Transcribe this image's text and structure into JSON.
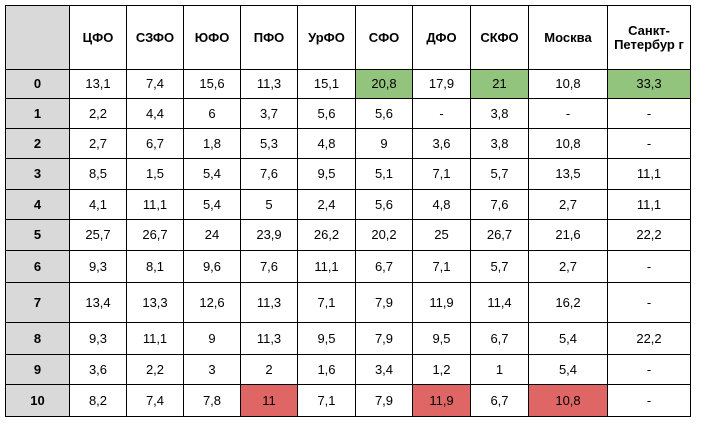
{
  "colors": {
    "header_bg": "#d9d9d9",
    "highlight_green": "#93c47d",
    "highlight_red": "#e06666"
  },
  "table": {
    "corner": "",
    "headers": [
      "ЦФО",
      "СЗФО",
      "ЮФО",
      "ПФО",
      "УрФО",
      "СФО",
      "ДФО",
      "СКФО",
      "Москва",
      "Санкт-Петербур г"
    ],
    "rows": [
      {
        "label": "0",
        "cells": [
          "13,1",
          "7,4",
          "15,6",
          "11,3",
          "15,1",
          "20,8",
          "17,9",
          "21",
          "10,8",
          "33,3"
        ],
        "green": [
          5,
          7,
          9
        ],
        "red": []
      },
      {
        "label": "1",
        "cells": [
          "2,2",
          "4,4",
          "6",
          "3,7",
          "5,6",
          "5,6",
          "-",
          "3,8",
          "-",
          "-"
        ],
        "green": [],
        "red": []
      },
      {
        "label": "2",
        "cells": [
          "2,7",
          "6,7",
          "1,8",
          "5,3",
          "4,8",
          "9",
          "3,6",
          "3,8",
          "10,8",
          "-"
        ],
        "green": [],
        "red": []
      },
      {
        "label": "3",
        "cells": [
          "8,5",
          "1,5",
          "5,4",
          "7,6",
          "9,5",
          "5,1",
          "7,1",
          "5,7",
          "13,5",
          "11,1"
        ],
        "green": [],
        "red": []
      },
      {
        "label": "4",
        "cells": [
          "4,1",
          "11,1",
          "5,4",
          "5",
          "2,4",
          "5,6",
          "4,8",
          "7,6",
          "2,7",
          "11,1"
        ],
        "green": [],
        "red": []
      },
      {
        "label": "5",
        "cells": [
          "25,7",
          "26,7",
          "24",
          "23,9",
          "26,2",
          "20,2",
          "25",
          "26,7",
          "21,6",
          "22,2"
        ],
        "green": [],
        "red": []
      },
      {
        "label": "6",
        "cells": [
          "9,3",
          "8,1",
          "9,6",
          "7,6",
          "11,1",
          "6,7",
          "7,1",
          "5,7",
          "2,7",
          "-"
        ],
        "green": [],
        "red": []
      },
      {
        "label": "7",
        "cells": [
          "13,4",
          "13,3",
          "12,6",
          "11,3",
          "7,1",
          "7,9",
          "11,9",
          "11,4",
          "16,2",
          "-"
        ],
        "green": [],
        "red": []
      },
      {
        "label": "8",
        "cells": [
          "9,3",
          "11,1",
          "9",
          "11,3",
          "9,5",
          "7,9",
          "9,5",
          "6,7",
          "5,4",
          "22,2"
        ],
        "green": [],
        "red": []
      },
      {
        "label": "9",
        "cells": [
          "3,6",
          "2,2",
          "3",
          "2",
          "1,6",
          "3,4",
          "1,2",
          "1",
          "5,4",
          "-"
        ],
        "green": [],
        "red": []
      },
      {
        "label": "10",
        "cells": [
          "8,2",
          "7,4",
          "7,8",
          "11",
          "7,1",
          "7,9",
          "11,9",
          "6,7",
          "10,8",
          "-"
        ],
        "green": [],
        "red": [
          3,
          6,
          8
        ]
      }
    ]
  }
}
